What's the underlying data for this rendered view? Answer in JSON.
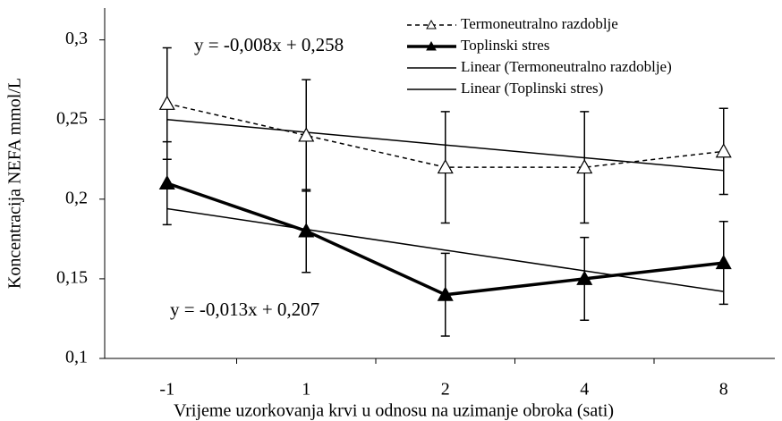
{
  "chart_data": {
    "type": "line",
    "x_label": "Vrijeme uzorkovanja krvi u odnosu na uzimanje obroka (sati)",
    "y_label": "Koncentracija NEFA mmol/L",
    "categories": [
      "-1",
      "1",
      "2",
      "4",
      "8"
    ],
    "ylim": [
      0.1,
      0.32
    ],
    "yticks": [
      {
        "value": 0.1,
        "label": "0,1"
      },
      {
        "value": 0.15,
        "label": "0,15"
      },
      {
        "value": 0.2,
        "label": "0,2"
      },
      {
        "value": 0.25,
        "label": "0,25"
      },
      {
        "value": 0.3,
        "label": "0,3"
      }
    ],
    "legend": "top-right",
    "series": [
      {
        "name": "Termoneutralno razdoblje",
        "color": "#000000",
        "style": "dashed",
        "marker": "open-triangle",
        "values": [
          0.26,
          0.24,
          0.22,
          0.22,
          0.23
        ],
        "errors": [
          0.035,
          0.035,
          0.035,
          0.035,
          0.027
        ]
      },
      {
        "name": "Toplinski stres",
        "color": "#000000",
        "style": "thick",
        "marker": "filled-triangle",
        "values": [
          0.21,
          0.18,
          0.14,
          0.15,
          0.16
        ],
        "errors": [
          0.026,
          0.026,
          0.026,
          0.026,
          0.026
        ]
      },
      {
        "name": "Linear (Termoneutralno razdoblje)",
        "color": "#000000",
        "style": "thin",
        "marker": "none",
        "values": [
          0.25,
          0.242,
          0.234,
          0.226,
          0.218
        ]
      },
      {
        "name": "Linear (Toplinski stres)",
        "color": "#000000",
        "style": "thin",
        "marker": "none",
        "values": [
          0.194,
          0.181,
          0.168,
          0.155,
          0.142
        ]
      }
    ],
    "annotations": [
      "y = -0,008x + 0,258",
      "y = -0,013x + 0,207"
    ]
  }
}
